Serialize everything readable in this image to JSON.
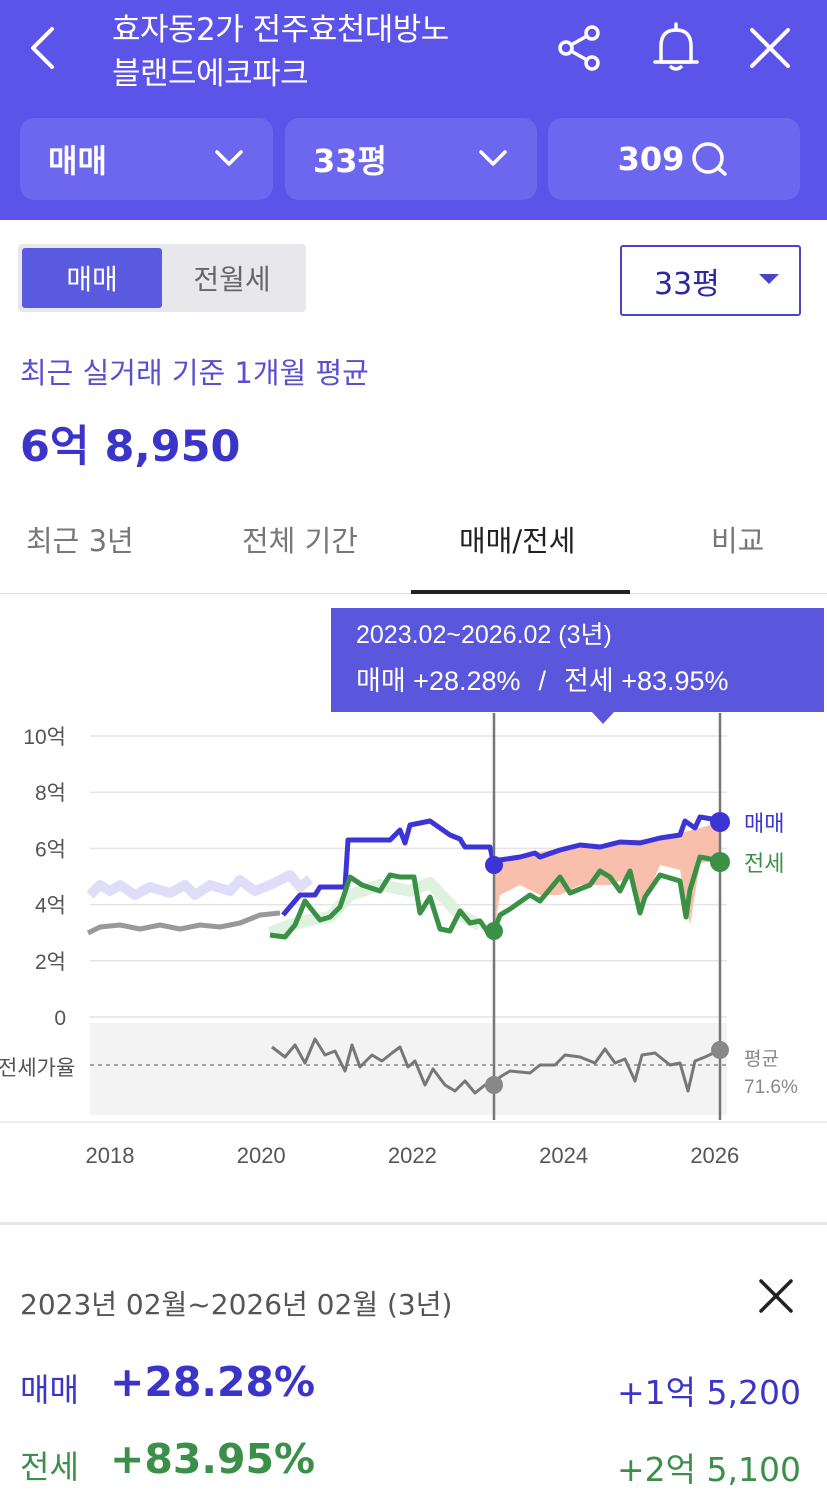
{
  "header": {
    "title_line1": "효자동2가 전주효천대방노",
    "title_line2": "블랜드에코파크",
    "trade_type": "매매",
    "area": "33평",
    "comment_count": "309"
  },
  "controls": {
    "segment_active": "매매",
    "segment_inactive": "전월세",
    "area_select": "33평"
  },
  "summary": {
    "label": "최근 실거래 기준 1개월 평균",
    "value": "6억 8,950"
  },
  "tabs": [
    {
      "label": "최근 3년"
    },
    {
      "label": "전체 기간"
    },
    {
      "label": "매매/전세"
    },
    {
      "label": "비교"
    }
  ],
  "tooltip": {
    "line1": "2023.02~2026.02 (3년)",
    "trade_part": "매매 +28.28%",
    "separator": "/",
    "jeonse_part": "전세 +83.95%"
  },
  "chart_data": {
    "type": "line",
    "y_ticks": [
      "10억",
      "8억",
      "6억",
      "4억",
      "2억",
      "0"
    ],
    "x_ticks": [
      "2018",
      "2020",
      "2022",
      "2024",
      "2026"
    ],
    "ylim": [
      0,
      10
    ],
    "series": [
      {
        "name": "매매",
        "color": "#3b35d6",
        "x": [
          2020.3,
          2020.6,
          2021.0,
          2021.3,
          2021.6,
          2021.9,
          2022.2,
          2022.5,
          2022.8,
          2023.0,
          2023.1,
          2023.4,
          2023.7,
          2024.0,
          2024.3,
          2024.6,
          2024.9,
          2025.2,
          2025.5,
          2025.8,
          2026.0
        ],
        "values": [
          3.6,
          4.2,
          4.5,
          6.4,
          6.5,
          6.7,
          6.8,
          6.9,
          6.5,
          6.2,
          5.4,
          5.7,
          5.9,
          5.8,
          6.0,
          6.2,
          6.1,
          6.2,
          6.3,
          6.4,
          6.9
        ]
      },
      {
        "name": "전세",
        "color": "#3a9146",
        "x": [
          2020.3,
          2020.6,
          2020.9,
          2021.2,
          2021.5,
          2021.8,
          2022.1,
          2022.4,
          2022.7,
          2023.0,
          2023.1,
          2023.4,
          2023.7,
          2024.0,
          2024.3,
          2024.6,
          2024.9,
          2025.2,
          2025.5,
          2025.8,
          2026.0
        ],
        "values": [
          3.0,
          3.3,
          3.8,
          4.5,
          4.8,
          5.0,
          4.9,
          4.0,
          3.5,
          3.3,
          3.0,
          3.8,
          4.3,
          4.0,
          4.8,
          4.9,
          5.0,
          4.7,
          5.1,
          3.3,
          5.5
        ]
      },
      {
        "name": "early-trend",
        "color": "#999999",
        "x": [
          2017.0,
          2017.5,
          2018.0,
          2018.5,
          2019.0,
          2019.5,
          2020.0,
          2020.3
        ],
        "values": [
          3.0,
          3.2,
          3.3,
          3.2,
          3.3,
          3.2,
          3.6,
          3.8
        ]
      }
    ],
    "ratio": {
      "label": "전세가율",
      "avg_label": "평균",
      "avg_value": "71.6%"
    },
    "series_labels": {
      "trade": "매매",
      "jeonse": "전세"
    }
  },
  "bottom_panel": {
    "range_title": "2023년 02월~2026년 02월 (3년)",
    "trade_label": "매매",
    "trade_pct": "+28.28%",
    "trade_amount": "+1억 5,200",
    "jeonse_label": "전세",
    "jeonse_pct": "+83.95%",
    "jeonse_amount": "+2억 5,100"
  },
  "colors": {
    "header_bg": "#5c54e8",
    "trade": "#3a34c9",
    "jeonse": "#3c8f49",
    "highlight": "#f7b6a6"
  }
}
